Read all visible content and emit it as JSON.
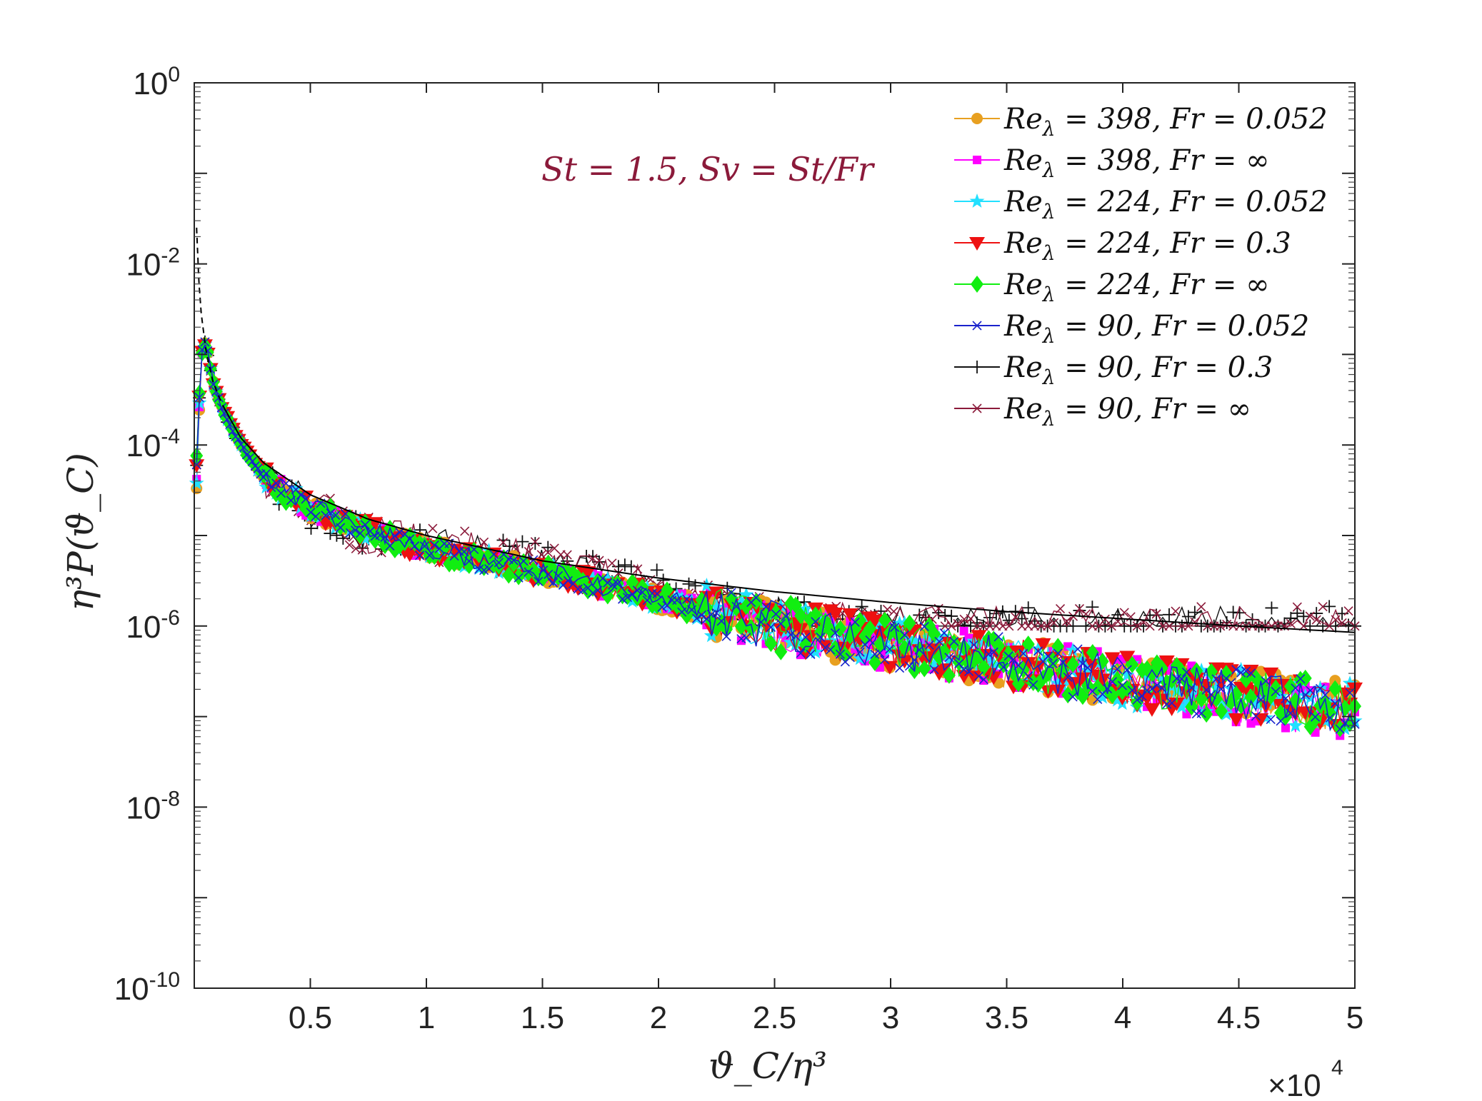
{
  "chart_data": {
    "type": "line",
    "title": "",
    "xlabel": "ϑ_C/η³",
    "ylabel": "η³P(ϑ_C)",
    "x_multiplier_label": "×10",
    "x_multiplier_exp": "4",
    "x_multiplier": 10000,
    "xlim": [
      0,
      5
    ],
    "yscale": "log",
    "ylim_exp": [
      -10,
      0
    ],
    "x_ticks": [
      0.5,
      1,
      1.5,
      2,
      2.5,
      3,
      3.5,
      4,
      4.5,
      5
    ],
    "x_tick_labels": [
      "0.5",
      "1",
      "1.5",
      "2",
      "2.5",
      "3",
      "3.5",
      "4",
      "4.5",
      "5"
    ],
    "y_ticks_exp": [
      0,
      -2,
      -4,
      -6,
      -8,
      -10
    ],
    "y_tick_base": "10",
    "y_tick_exps": [
      "0",
      "-2",
      "-4",
      "-6",
      "-8",
      "-10"
    ],
    "grid": false,
    "legend_position": "top-right",
    "annotation": {
      "text": "St = 1.5, Sv = St/Fr",
      "color": "#8b1a3a"
    },
    "reference_curve": {
      "name": "reference",
      "style": "solid black, dashed for small x",
      "x": [
        0.01,
        0.02,
        0.03,
        0.05,
        0.08,
        0.12,
        0.2,
        0.3,
        0.5,
        0.75,
        1,
        1.5,
        2,
        2.5,
        3,
        3.5,
        4,
        4.5,
        5
      ],
      "log10_y": [
        -1.6,
        -2.2,
        -2.55,
        -2.95,
        -3.3,
        -3.55,
        -3.92,
        -4.2,
        -4.55,
        -4.82,
        -5.0,
        -5.28,
        -5.47,
        -5.62,
        -5.74,
        -5.84,
        -5.92,
        -6.0,
        -6.07
      ]
    },
    "series": [
      {
        "name": "Reλ = 398, Fr = 0.052",
        "color": "#e8a020",
        "marker": "circle",
        "x": [
          0.01,
          0.03,
          0.05,
          0.08,
          0.12,
          0.2,
          0.3,
          0.5,
          0.75,
          1,
          1.5,
          2,
          2.5,
          3,
          3.5,
          4,
          4.5,
          5
        ],
        "log10_y": [
          -4.5,
          -3.0,
          -2.85,
          -3.3,
          -3.6,
          -4.0,
          -4.35,
          -4.7,
          -4.95,
          -5.15,
          -5.4,
          -5.7,
          -6.0,
          -6.2,
          -6.4,
          -6.6,
          -6.75,
          -6.9
        ]
      },
      {
        "name": "Reλ = 398, Fr = ∞",
        "color": "#ff00ff",
        "marker": "square",
        "x": [
          0.01,
          0.03,
          0.05,
          0.08,
          0.12,
          0.2,
          0.3,
          0.5,
          0.75,
          1,
          1.5,
          2,
          2.5,
          3,
          3.5,
          4,
          4.5,
          5
        ],
        "log10_y": [
          -4.4,
          -3.0,
          -2.85,
          -3.3,
          -3.6,
          -4.0,
          -4.35,
          -4.7,
          -4.95,
          -5.15,
          -5.4,
          -5.7,
          -6.0,
          -6.2,
          -6.4,
          -6.6,
          -6.8,
          -7.0
        ]
      },
      {
        "name": "Reλ = 224, Fr = 0.052",
        "color": "#22e0ff",
        "marker": "star",
        "x": [
          0.01,
          0.03,
          0.05,
          0.08,
          0.12,
          0.2,
          0.3,
          0.5,
          0.75,
          1,
          1.5,
          2,
          2.5,
          3,
          3.5,
          4,
          4.5,
          5
        ],
        "log10_y": [
          -4.4,
          -3.0,
          -2.85,
          -3.3,
          -3.6,
          -4.0,
          -4.35,
          -4.7,
          -4.95,
          -5.15,
          -5.4,
          -5.7,
          -6.0,
          -6.2,
          -6.4,
          -6.6,
          -6.75,
          -6.9
        ]
      },
      {
        "name": "Reλ = 224, Fr = 0.3",
        "color": "#ee1111",
        "marker": "triangle-down",
        "x": [
          0.01,
          0.03,
          0.05,
          0.08,
          0.12,
          0.2,
          0.3,
          0.5,
          0.75,
          1,
          1.5,
          2,
          2.5,
          3,
          3.5,
          4,
          4.5,
          5
        ],
        "log10_y": [
          -4.2,
          -3.0,
          -2.85,
          -3.3,
          -3.6,
          -4.0,
          -4.35,
          -4.7,
          -4.95,
          -5.15,
          -5.4,
          -5.7,
          -6.0,
          -6.2,
          -6.4,
          -6.6,
          -6.75,
          -6.9
        ]
      },
      {
        "name": "Reλ = 224, Fr = ∞",
        "color": "#11ee11",
        "marker": "diamond",
        "x": [
          0.01,
          0.03,
          0.05,
          0.08,
          0.12,
          0.2,
          0.3,
          0.5,
          0.75,
          1,
          1.5,
          2,
          2.5,
          3,
          3.5,
          4,
          4.5,
          5
        ],
        "log10_y": [
          -4.1,
          -3.0,
          -2.85,
          -3.3,
          -3.6,
          -4.0,
          -4.35,
          -4.7,
          -4.95,
          -5.15,
          -5.4,
          -5.7,
          -6.0,
          -6.2,
          -6.4,
          -6.6,
          -6.75,
          -6.9
        ]
      },
      {
        "name": "Reλ = 90, Fr = 0.052",
        "color": "#1a22cc",
        "marker": "x",
        "x": [
          0.01,
          0.03,
          0.05,
          0.08,
          0.12,
          0.2,
          0.3,
          0.5,
          0.75,
          1,
          1.5,
          2,
          2.5,
          3,
          3.5,
          4,
          4.5,
          5
        ],
        "log10_y": [
          -4.2,
          -3.0,
          -2.85,
          -3.3,
          -3.6,
          -4.0,
          -4.35,
          -4.7,
          -4.95,
          -5.15,
          -5.4,
          -5.7,
          -6.0,
          -6.2,
          -6.4,
          -6.6,
          -6.75,
          -6.9
        ]
      },
      {
        "name": "Reλ = 90, Fr = 0.3",
        "color": "#111111",
        "marker": "plus",
        "x": [
          0.01,
          0.03,
          0.05,
          0.08,
          0.12,
          0.2,
          0.3,
          0.5,
          0.75,
          1,
          1.5,
          2,
          2.5,
          3,
          3.5,
          4,
          4.5,
          5
        ],
        "log10_y": [
          -4.2,
          -3.0,
          -2.85,
          -3.3,
          -3.6,
          -4.0,
          -4.35,
          -4.7,
          -5.0,
          -5.1,
          -5.3,
          -5.6,
          -5.9,
          -6.0,
          -6.0,
          -6.0,
          -6.0,
          -6.0
        ]
      },
      {
        "name": "Reλ = 90, Fr = ∞",
        "color": "#8b1a3a",
        "marker": "x",
        "x": [
          0.01,
          0.03,
          0.05,
          0.08,
          0.12,
          0.2,
          0.3,
          0.5,
          0.75,
          1,
          1.5,
          2,
          2.5,
          3,
          3.5,
          4,
          4.5,
          5
        ],
        "log10_y": [
          -4.2,
          -3.0,
          -2.85,
          -3.3,
          -3.6,
          -4.0,
          -4.35,
          -4.7,
          -5.0,
          -5.1,
          -5.3,
          -5.6,
          -5.9,
          -6.0,
          -6.0,
          -6.0,
          -6.0,
          -6.0
        ]
      }
    ]
  },
  "legend": {
    "entries": [
      {
        "re": "Re",
        "sub": "λ",
        "text": " = 398, Fr = 0.052"
      },
      {
        "re": "Re",
        "sub": "λ",
        "text": " = 398, Fr = ∞"
      },
      {
        "re": "Re",
        "sub": "λ",
        "text": " = 224, Fr = 0.052"
      },
      {
        "re": "Re",
        "sub": "λ",
        "text": " = 224, Fr = 0.3"
      },
      {
        "re": "Re",
        "sub": "λ",
        "text": " = 224, Fr = ∞"
      },
      {
        "re": "Re",
        "sub": "λ",
        "text": " = 90, Fr = 0.052"
      },
      {
        "re": "Re",
        "sub": "λ",
        "text": " = 90, Fr = 0.3"
      },
      {
        "re": "Re",
        "sub": "λ",
        "text": " = 90, Fr = ∞"
      }
    ]
  }
}
